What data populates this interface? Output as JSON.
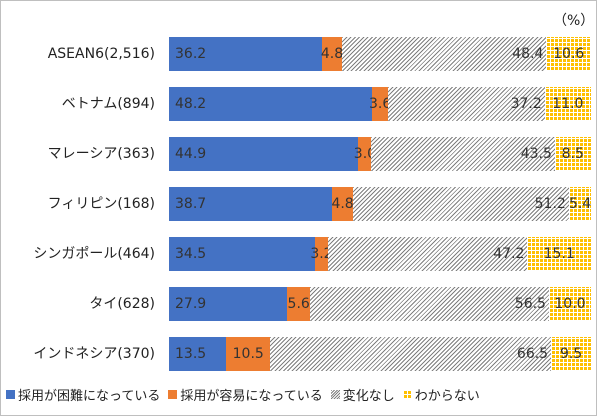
{
  "chart_data": {
    "type": "bar",
    "orientation": "horizontal-stacked-100",
    "unit_label": "（%）",
    "categories": [
      "ASEAN6(2,516)",
      "ベトナム(894)",
      "マレーシア(363)",
      "フィリピン(168)",
      "シンガポール(464)",
      "タイ(628)",
      "インドネシア(370)"
    ],
    "series": [
      {
        "name": "採用が困難になっている",
        "color": "#4472c4",
        "values": [
          36.2,
          48.2,
          44.9,
          38.7,
          34.5,
          27.9,
          13.5
        ]
      },
      {
        "name": "採用が容易になっている",
        "color": "#ed7d31",
        "values": [
          4.8,
          3.6,
          3.0,
          4.8,
          3.2,
          5.6,
          10.5
        ]
      },
      {
        "name": "変化なし",
        "color": "#a6a6a6",
        "pattern": "hatched",
        "values": [
          48.4,
          37.2,
          43.5,
          51.2,
          47.2,
          56.5,
          66.5
        ]
      },
      {
        "name": "わからない",
        "color": "#ffc000",
        "pattern": "dotted",
        "values": [
          10.6,
          11.0,
          8.5,
          5.4,
          15.1,
          10.0,
          9.5
        ]
      }
    ],
    "value_labels": [
      [
        "36.2",
        "48.2",
        "44.9",
        "38.7",
        "34.5",
        "27.9",
        "13.5"
      ],
      [
        "4.8",
        "3.6",
        "3.0",
        "4.8",
        "3.2",
        "5.6",
        "10.5"
      ],
      [
        "48.4",
        "37.2",
        "43.5",
        "51.2",
        "47.2",
        "56.5",
        "66.5"
      ],
      [
        "10.6",
        "11.0",
        "8.5",
        "5.4",
        "15.1",
        "10.0",
        "9.5"
      ]
    ],
    "xlim": [
      0,
      100
    ],
    "legend_position": "bottom"
  }
}
